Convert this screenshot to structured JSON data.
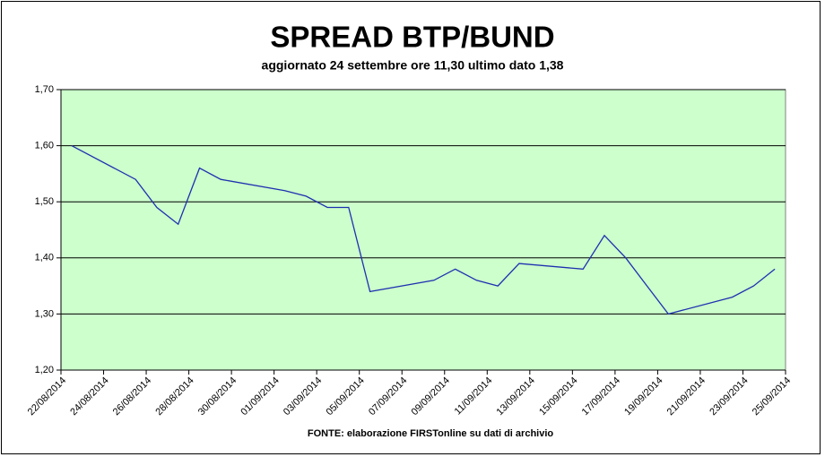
{
  "chart_data": {
    "type": "line",
    "title": "SPREAD BTP/BUND",
    "subtitle": "aggiornato 24 settembre ore 11,30 ultimo dato 1,38",
    "source": "FONTE: elaborazione FIRSTonline su dati di archivio",
    "x": [
      "22/08/2014",
      "25/08/2014",
      "26/08/2014",
      "27/08/2014",
      "28/08/2014",
      "29/08/2014",
      "01/09/2014",
      "02/09/2014",
      "03/09/2014",
      "04/09/2014",
      "05/09/2014",
      "08/09/2014",
      "09/09/2014",
      "10/09/2014",
      "11/09/2014",
      "12/09/2014",
      "15/09/2014",
      "16/09/2014",
      "17/09/2014",
      "18/09/2014",
      "19/09/2014",
      "22/09/2014",
      "23/09/2014",
      "24/09/2014"
    ],
    "series": [
      {
        "name": "Spread",
        "color": "#1f2fb0",
        "values": [
          1.6,
          1.54,
          1.49,
          1.46,
          1.56,
          1.54,
          1.52,
          1.51,
          1.49,
          1.49,
          1.34,
          1.36,
          1.38,
          1.36,
          1.35,
          1.39,
          1.38,
          1.44,
          1.4,
          1.35,
          1.3,
          1.33,
          1.35,
          1.38
        ]
      }
    ],
    "xlim": [
      "22/08/2014",
      "25/09/2014"
    ],
    "xticks": [
      "22/08/2014",
      "24/08/2014",
      "26/08/2014",
      "28/08/2014",
      "30/08/2014",
      "01/09/2014",
      "03/09/2014",
      "05/09/2014",
      "07/09/2014",
      "09/09/2014",
      "11/09/2014",
      "13/09/2014",
      "15/09/2014",
      "17/09/2014",
      "19/09/2014",
      "21/09/2014",
      "23/09/2014",
      "25/09/2014"
    ],
    "ylim": [
      1.2,
      1.7
    ],
    "yticks": [
      {
        "value": 1.2,
        "label": "1,20"
      },
      {
        "value": 1.3,
        "label": "1,30"
      },
      {
        "value": 1.4,
        "label": "1,40"
      },
      {
        "value": 1.5,
        "label": "1,50"
      },
      {
        "value": 1.6,
        "label": "1,60"
      },
      {
        "value": 1.7,
        "label": "1,70"
      }
    ],
    "grid": true,
    "plot_background": "#ccffcc"
  }
}
